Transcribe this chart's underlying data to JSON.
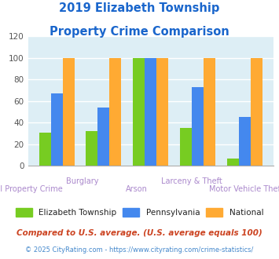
{
  "title_line1": "2019 Elizabeth Township",
  "title_line2": "Property Crime Comparison",
  "title_color": "#1a66cc",
  "categories": [
    "All Property Crime",
    "Burglary",
    "Arson",
    "Larceny & Theft",
    "Motor Vehicle Theft"
  ],
  "cat_labels_top": [
    "",
    "Burglary",
    "",
    "Larceny & Theft",
    ""
  ],
  "cat_labels_bot": [
    "All Property Crime",
    "",
    "Arson",
    "",
    "Motor Vehicle Theft"
  ],
  "elizabeth": [
    31,
    32,
    100,
    35,
    7
  ],
  "pennsylvania": [
    67,
    54,
    100,
    73,
    45
  ],
  "national": [
    100,
    100,
    100,
    100,
    100
  ],
  "elizabeth_color": "#77cc22",
  "pennsylvania_color": "#4488ee",
  "national_color": "#ffaa33",
  "ylim": [
    0,
    120
  ],
  "yticks": [
    0,
    20,
    40,
    60,
    80,
    100,
    120
  ],
  "plot_bg": "#ddeef5",
  "fig_bg": "#ffffff",
  "legend_labels": [
    "Elizabeth Township",
    "Pennsylvania",
    "National"
  ],
  "footnote1": "Compared to U.S. average. (U.S. average equals 100)",
  "footnote2": "© 2025 CityRating.com - https://www.cityrating.com/crime-statistics/",
  "footnote1_color": "#cc4422",
  "footnote2_color": "#4488cc",
  "bar_width": 0.25
}
